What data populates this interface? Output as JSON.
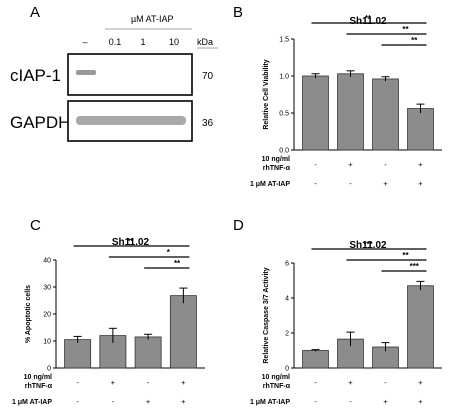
{
  "panel_labels": [
    "A",
    "B",
    "C",
    "D"
  ],
  "blot": {
    "treatment_header": "µM AT-IAP",
    "lanes": [
      "–",
      "0.1",
      "1",
      "10"
    ],
    "kda_label": "kDa",
    "rows": [
      {
        "name": "cIAP-1",
        "kda": "70"
      },
      {
        "name": "GAPDH",
        "kda": "36"
      }
    ],
    "band_intensity": {
      "cIAP-1": [
        1,
        0,
        0,
        0
      ],
      "GAPDH": [
        1,
        1,
        1,
        1
      ]
    }
  },
  "conditions": {
    "tnf_label_line1": "10 ng/ml",
    "tnf_label_line2": "rhTNF-α",
    "atiap_label": "1 μM AT-IAP",
    "tnf_signs": [
      "-",
      "+",
      "-",
      "+"
    ],
    "atiap_signs": [
      "-",
      "-",
      "+",
      "+"
    ]
  },
  "chart_data": [
    {
      "panel": "B",
      "type": "bar",
      "title": "Sh11.02",
      "ylabel": "Relative Cell Viability",
      "ylim": [
        0,
        1.5
      ],
      "yticks": [
        "0.0",
        "0.5",
        "1.0",
        "1.5"
      ],
      "ytick_values": [
        0,
        0.5,
        1.0,
        1.5
      ],
      "values": [
        1.0,
        1.03,
        0.96,
        0.56
      ],
      "errors": [
        0.03,
        0.04,
        0.03,
        0.06
      ],
      "significance": [
        {
          "from": 0,
          "to": 3,
          "label": "**"
        },
        {
          "from": 1,
          "to": 3,
          "label": "**"
        },
        {
          "from": 2,
          "to": 3,
          "label": "**"
        }
      ]
    },
    {
      "panel": "C",
      "type": "bar",
      "title": "Sh11.02",
      "ylabel": "% Apoptotic cells",
      "ylim": [
        0,
        40
      ],
      "yticks": [
        "0",
        "10",
        "20",
        "30",
        "40"
      ],
      "ytick_values": [
        0,
        10,
        20,
        30,
        40
      ],
      "values": [
        10.5,
        12.0,
        11.5,
        26.8
      ],
      "errors": [
        1.2,
        2.7,
        1.0,
        2.8
      ],
      "significance": [
        {
          "from": 0,
          "to": 3,
          "label": "**"
        },
        {
          "from": 1,
          "to": 3,
          "label": "*"
        },
        {
          "from": 2,
          "to": 3,
          "label": "**"
        }
      ]
    },
    {
      "panel": "D",
      "type": "bar",
      "title": "Sh11.02",
      "ylabel": "Relative Caspase 3/7 Activity",
      "ylim": [
        0,
        6
      ],
      "yticks": [
        "0",
        "2",
        "4",
        "6"
      ],
      "ytick_values": [
        0,
        2,
        4,
        6
      ],
      "values": [
        1.0,
        1.65,
        1.2,
        4.7
      ],
      "errors": [
        0.05,
        0.4,
        0.25,
        0.25
      ],
      "significance": [
        {
          "from": 0,
          "to": 3,
          "label": "***"
        },
        {
          "from": 1,
          "to": 3,
          "label": "**"
        },
        {
          "from": 2,
          "to": 3,
          "label": "***"
        }
      ]
    }
  ]
}
